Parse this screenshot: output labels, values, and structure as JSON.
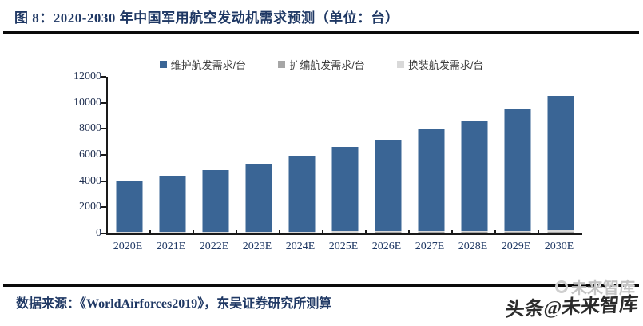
{
  "header": {
    "title": "图 8：2020-2030 年中国军用航空发动机需求预测（单位：台）"
  },
  "legend": {
    "items": [
      {
        "label": "维护航发需求/台",
        "color": "#3A6595"
      },
      {
        "label": "扩编航发需求/台",
        "color": "#A6A6A6"
      },
      {
        "label": "换装航发需求/台",
        "color": "#D9D9D9"
      }
    ]
  },
  "chart_data": {
    "type": "bar",
    "stacked": true,
    "title": "2020-2030 年中国军用航空发动机需求预测（单位：台）",
    "categories": [
      "2020E",
      "2021E",
      "2022E",
      "2023E",
      "2024E",
      "2025E",
      "2026E",
      "2027E",
      "2028E",
      "2029E",
      "2030E"
    ],
    "series": [
      {
        "name": "维护航发需求/台",
        "color": "#3A6595",
        "values": [
          3900,
          4300,
          4700,
          5200,
          5800,
          6450,
          7000,
          7800,
          8450,
          9300,
          10300
        ]
      },
      {
        "name": "扩编航发需求/台",
        "color": "#A6A6A6",
        "values": [
          60,
          65,
          70,
          75,
          80,
          90,
          95,
          100,
          110,
          120,
          130
        ]
      },
      {
        "name": "换装航发需求/台",
        "color": "#D9D9D9",
        "values": [
          40,
          45,
          50,
          55,
          60,
          65,
          70,
          75,
          80,
          90,
          100
        ]
      }
    ],
    "xlabel": "",
    "ylabel": "",
    "ylim": [
      0,
      12000
    ],
    "yticks": [
      0,
      2000,
      4000,
      6000,
      8000,
      10000,
      12000
    ],
    "grid": false,
    "legend_position": "top"
  },
  "footer": {
    "source": "数据来源：《WorldAirforces2019》，东吴证券研究所测算"
  },
  "watermark": {
    "gray_text": "未来智库",
    "dark_text": "头条@未来智库"
  }
}
